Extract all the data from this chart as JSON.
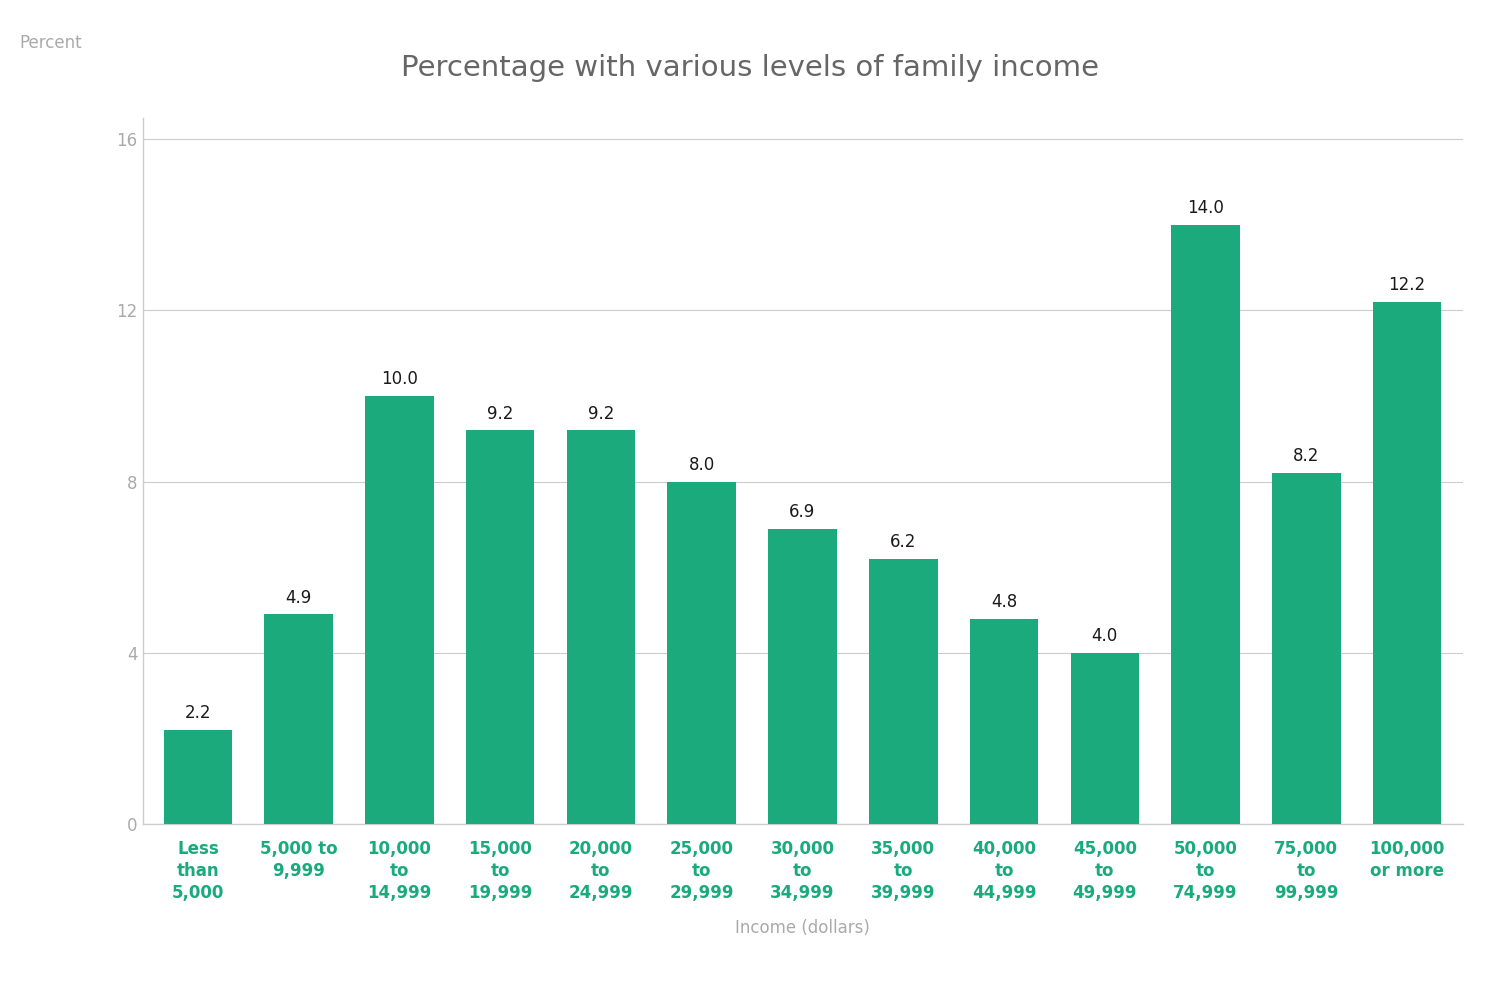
{
  "title": "Percentage with various levels of family income",
  "xlabel": "Income (dollars)",
  "ylabel": "Percent",
  "categories": [
    "Less\nthan\n5,000",
    "5,000 to\n9,999",
    "10,000\nto\n14,999",
    "15,000\nto\n19,999",
    "20,000\nto\n24,999",
    "25,000\nto\n29,999",
    "30,000\nto\n34,999",
    "35,000\nto\n39,999",
    "40,000\nto\n44,999",
    "45,000\nto\n49,999",
    "50,000\nto\n74,999",
    "75,000\nto\n99,999",
    "100,000\nor more"
  ],
  "values": [
    2.2,
    4.9,
    10.0,
    9.2,
    9.2,
    8.0,
    6.9,
    6.2,
    4.8,
    4.0,
    14.0,
    8.2,
    12.2
  ],
  "bar_color": "#1aaa7c",
  "background_color": "#ffffff",
  "label_color": "#1a1a1a",
  "axis_color": "#cccccc",
  "tick_label_color": "#aaaaaa",
  "title_color": "#666666",
  "axis_label_color": "#aaaaaa",
  "ylim": [
    0,
    16.5
  ],
  "yticks": [
    0,
    4,
    8,
    12,
    16
  ],
  "title_fontsize": 21,
  "axis_label_fontsize": 12,
  "tick_label_fontsize": 12,
  "bar_label_fontsize": 12,
  "bar_width": 0.68
}
